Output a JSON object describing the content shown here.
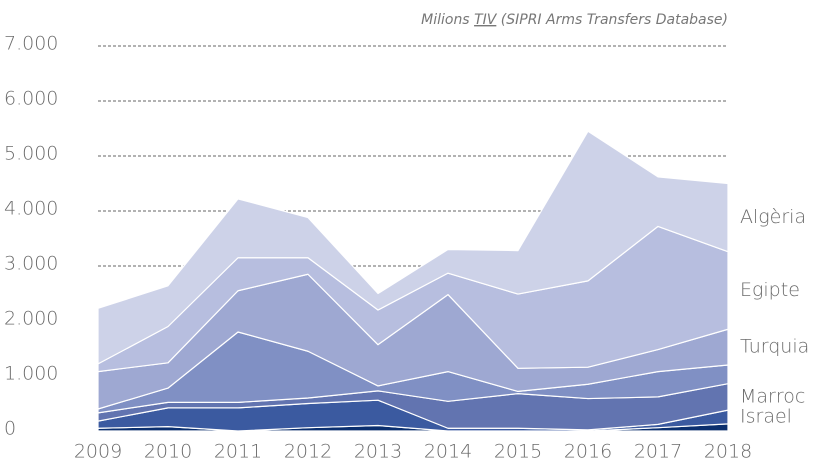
{
  "chart_data": {
    "type": "stacked_area",
    "subtitle": [
      "Milions ",
      "TIV",
      " (SIPRI Arms Transfers Database)"
    ],
    "categories": [
      "2009",
      "2010",
      "2011",
      "2012",
      "2013",
      "2014",
      "2015",
      "2016",
      "2017",
      "2018"
    ],
    "series": [
      {
        "color": "#0b2f6e",
        "values": [
          50,
          80,
          0,
          60,
          100,
          0,
          0,
          0,
          60,
          130
        ]
      },
      {
        "name": "Israel",
        "color": "#3b5aa0",
        "values": [
          130,
          340,
          420,
          440,
          460,
          50,
          50,
          20,
          60,
          250
        ]
      },
      {
        "name": "Marroc",
        "color": "#6274b0",
        "values": [
          150,
          100,
          100,
          100,
          170,
          490,
          630,
          570,
          500,
          480
        ]
      },
      {
        "color": "#8090c4",
        "values": [
          70,
          260,
          1280,
          850,
          90,
          540,
          40,
          260,
          460,
          340
        ]
      },
      {
        "name": "Turquia",
        "color": "#9ea8d2",
        "values": [
          680,
          460,
          750,
          1400,
          750,
          1400,
          420,
          310,
          400,
          650
        ]
      },
      {
        "name": "Egipte",
        "color": "#b7bedf",
        "values": [
          140,
          660,
          600,
          300,
          630,
          390,
          1350,
          1570,
          2240,
          1410
        ]
      },
      {
        "name": "Algèria",
        "color": "#cdd2e8",
        "values": [
          1010,
          740,
          1070,
          730,
          300,
          430,
          790,
          2720,
          900,
          1240
        ]
      }
    ],
    "ylim": [
      0,
      7000
    ],
    "yticks": [
      0,
      {
        "value": 1000,
        "label": "1.000"
      },
      {
        "value": 2000,
        "label": "2.000"
      },
      {
        "value": 3000,
        "label": "3.000"
      },
      {
        "value": 4000,
        "label": "4.000"
      },
      {
        "value": 5000,
        "label": "5.000"
      },
      {
        "value": 6000,
        "label": "6.000"
      },
      {
        "value": 7000,
        "label": "7.000"
      }
    ],
    "grid": true
  }
}
